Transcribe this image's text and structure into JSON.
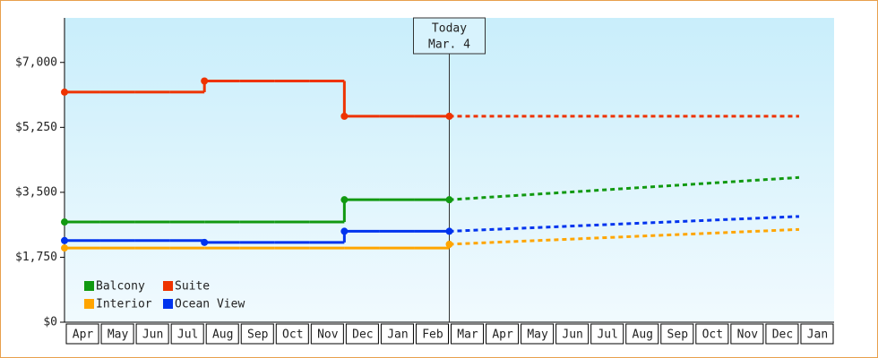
{
  "chart_data": {
    "type": "step-line",
    "categories": [
      "Apr",
      "May",
      "Jun",
      "Jul",
      "Aug",
      "Sep",
      "Oct",
      "Nov",
      "Dec",
      "Jan",
      "Feb",
      "Mar",
      "Apr",
      "May",
      "Jun",
      "Jul",
      "Aug",
      "Sep",
      "Oct",
      "Nov",
      "Dec",
      "Jan"
    ],
    "ylim": [
      0,
      8200
    ],
    "yticks": [
      {
        "value": 0,
        "label": "$0"
      },
      {
        "value": 1750,
        "label": "$1,750"
      },
      {
        "value": 3500,
        "label": "$3,500"
      },
      {
        "value": 5250,
        "label": "$5,250"
      },
      {
        "value": 7000,
        "label": "$7,000"
      }
    ],
    "annotation": {
      "lines": [
        "Today",
        "Mar. 4"
      ]
    },
    "legend": "bottom-left",
    "series": [
      {
        "name": "Balcony",
        "color": "#119911",
        "values": [
          2700,
          2700,
          2700,
          2700,
          2700,
          2700,
          2700,
          2700,
          3300,
          3300,
          3300,
          3300,
          null,
          null,
          null,
          null,
          null,
          null,
          null,
          null,
          null,
          null
        ],
        "forecast": [
          null,
          null,
          null,
          null,
          null,
          null,
          null,
          null,
          null,
          null,
          null,
          3300,
          3360,
          3420,
          3480,
          3540,
          3600,
          3660,
          3720,
          3780,
          3840,
          3900
        ]
      },
      {
        "name": "Suite",
        "color": "#ee3300",
        "values": [
          6200,
          6200,
          6200,
          6200,
          6500,
          6500,
          6500,
          6500,
          5550,
          5550,
          5550,
          5550,
          null,
          null,
          null,
          null,
          null,
          null,
          null,
          null,
          null,
          null
        ],
        "forecast": [
          null,
          null,
          null,
          null,
          null,
          null,
          null,
          null,
          null,
          null,
          null,
          5550,
          5550,
          5550,
          5550,
          5550,
          5550,
          5550,
          5550,
          5550,
          5550,
          5550
        ]
      },
      {
        "name": "Interior",
        "color": "#ffa500",
        "values": [
          2000,
          2000,
          2000,
          2000,
          2000,
          2000,
          2000,
          2000,
          2000,
          2000,
          2000,
          2100,
          null,
          null,
          null,
          null,
          null,
          null,
          null,
          null,
          null,
          null
        ],
        "forecast": [
          null,
          null,
          null,
          null,
          null,
          null,
          null,
          null,
          null,
          null,
          null,
          2100,
          2140,
          2180,
          2220,
          2260,
          2300,
          2340,
          2380,
          2420,
          2460,
          2500
        ]
      },
      {
        "name": "Ocean View",
        "color": "#0033ee",
        "values": [
          2200,
          2200,
          2200,
          2200,
          2150,
          2150,
          2150,
          2150,
          2450,
          2450,
          2450,
          2450,
          null,
          null,
          null,
          null,
          null,
          null,
          null,
          null,
          null,
          null
        ],
        "forecast": [
          null,
          null,
          null,
          null,
          null,
          null,
          null,
          null,
          null,
          null,
          null,
          2450,
          2490,
          2530,
          2570,
          2610,
          2650,
          2690,
          2730,
          2770,
          2810,
          2850
        ]
      }
    ]
  }
}
